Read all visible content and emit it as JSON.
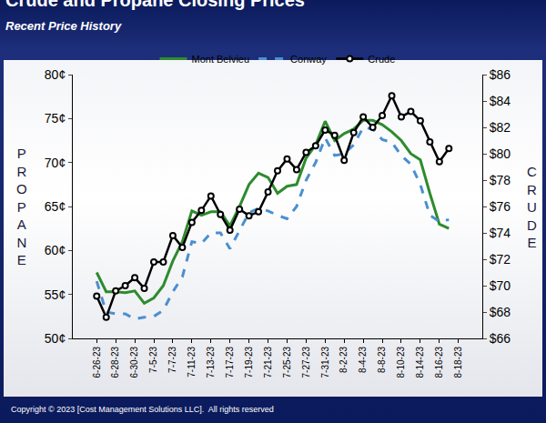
{
  "chart_data": {
    "type": "line",
    "title": "Crude and Propane Closing Prices",
    "subtitle": "Recent Price History",
    "y_label": "PROPANE",
    "y2_label": "CRUDE",
    "annotations": [
      "Copyright © 2023 [Cost Management Solutions LLC].  All rights reserved"
    ],
    "categories": [
      "6-26-23",
      null,
      "6-28-23",
      null,
      "6-30-23",
      null,
      "7-5-23",
      null,
      "7-7-23",
      null,
      "7-11-23",
      null,
      "7-13-23",
      null,
      "7-17-23",
      null,
      "7-19-23",
      null,
      "7-21-23",
      null,
      "7-25-23",
      null,
      "7-27-23",
      null,
      "7-31-23",
      null,
      "8-2-23",
      null,
      "8-4-23",
      null,
      "8-8-23",
      null,
      "8-10-23",
      null,
      "8-14-23",
      null,
      "8-16-23",
      null,
      "8-18-23"
    ],
    "series": [
      {
        "name": "Mont Belvieu",
        "color": "#2e8b2e",
        "line_style": "solid",
        "values": [
          57.5,
          55.3,
          55.3,
          55.2,
          55.4,
          54.0,
          54.6,
          56.0,
          58.8,
          61.0,
          64.5,
          64.0,
          64.4,
          64.4,
          62.8,
          65.0,
          67.5,
          68.8,
          68.3,
          66.5,
          67.3,
          67.5,
          70.5,
          72.0,
          74.7,
          72.5,
          73.3,
          73.8,
          74.8,
          74.8,
          74.3,
          73.5,
          72.5,
          71.0,
          70.3,
          66.5,
          63.0,
          62.5,
          null
        ]
      },
      {
        "name": "Conway",
        "color": "#4a8fd0",
        "line_style": "dashed",
        "values": [
          56.5,
          53.0,
          52.8,
          52.8,
          52.2,
          52.4,
          52.5,
          53.2,
          55.3,
          57.0,
          61.0,
          60.8,
          62.0,
          62.0,
          60.2,
          62.3,
          64.3,
          64.8,
          64.5,
          64.0,
          63.6,
          65.0,
          68.0,
          70.0,
          72.8,
          70.8,
          71.0,
          72.0,
          74.0,
          73.8,
          72.6,
          72.3,
          70.8,
          69.8,
          67.5,
          64.0,
          63.3,
          63.5,
          null
        ]
      },
      {
        "name": "Crude",
        "color": "#000000",
        "line_style": "solid",
        "marker": "circle",
        "axis": "y2",
        "values": [
          69.2,
          67.6,
          69.6,
          70.0,
          70.6,
          69.8,
          71.8,
          71.8,
          73.8,
          72.9,
          74.8,
          75.7,
          76.8,
          75.4,
          74.2,
          75.8,
          75.3,
          75.6,
          77.1,
          78.7,
          79.6,
          78.8,
          80.1,
          80.6,
          81.8,
          81.4,
          79.5,
          81.6,
          82.8,
          82.0,
          82.9,
          84.4,
          82.8,
          83.2,
          82.5,
          80.9,
          79.4,
          80.4,
          null
        ]
      }
    ],
    "ylim": [
      50,
      80
    ],
    "yticks": [
      {
        "value": 50,
        "label": "50¢"
      },
      {
        "value": 55,
        "label": "55¢"
      },
      {
        "value": 60,
        "label": "60¢"
      },
      {
        "value": 65,
        "label": "65¢"
      },
      {
        "value": 70,
        "label": "70¢"
      },
      {
        "value": 75,
        "label": "75¢"
      },
      {
        "value": 80,
        "label": "80¢"
      }
    ],
    "y2lim": [
      66,
      86
    ],
    "y2ticks": [
      {
        "value": 66,
        "label": "$66"
      },
      {
        "value": 68,
        "label": "$68"
      },
      {
        "value": 70,
        "label": "$70"
      },
      {
        "value": 72,
        "label": "$72"
      },
      {
        "value": 74,
        "label": "$74"
      },
      {
        "value": 76,
        "label": "$76"
      },
      {
        "value": 78,
        "label": "$78"
      },
      {
        "value": 80,
        "label": "$80"
      },
      {
        "value": 82,
        "label": "$82"
      },
      {
        "value": 84,
        "label": "$84"
      },
      {
        "value": 86,
        "label": "$86"
      }
    ],
    "grid": false,
    "legend": "top"
  }
}
